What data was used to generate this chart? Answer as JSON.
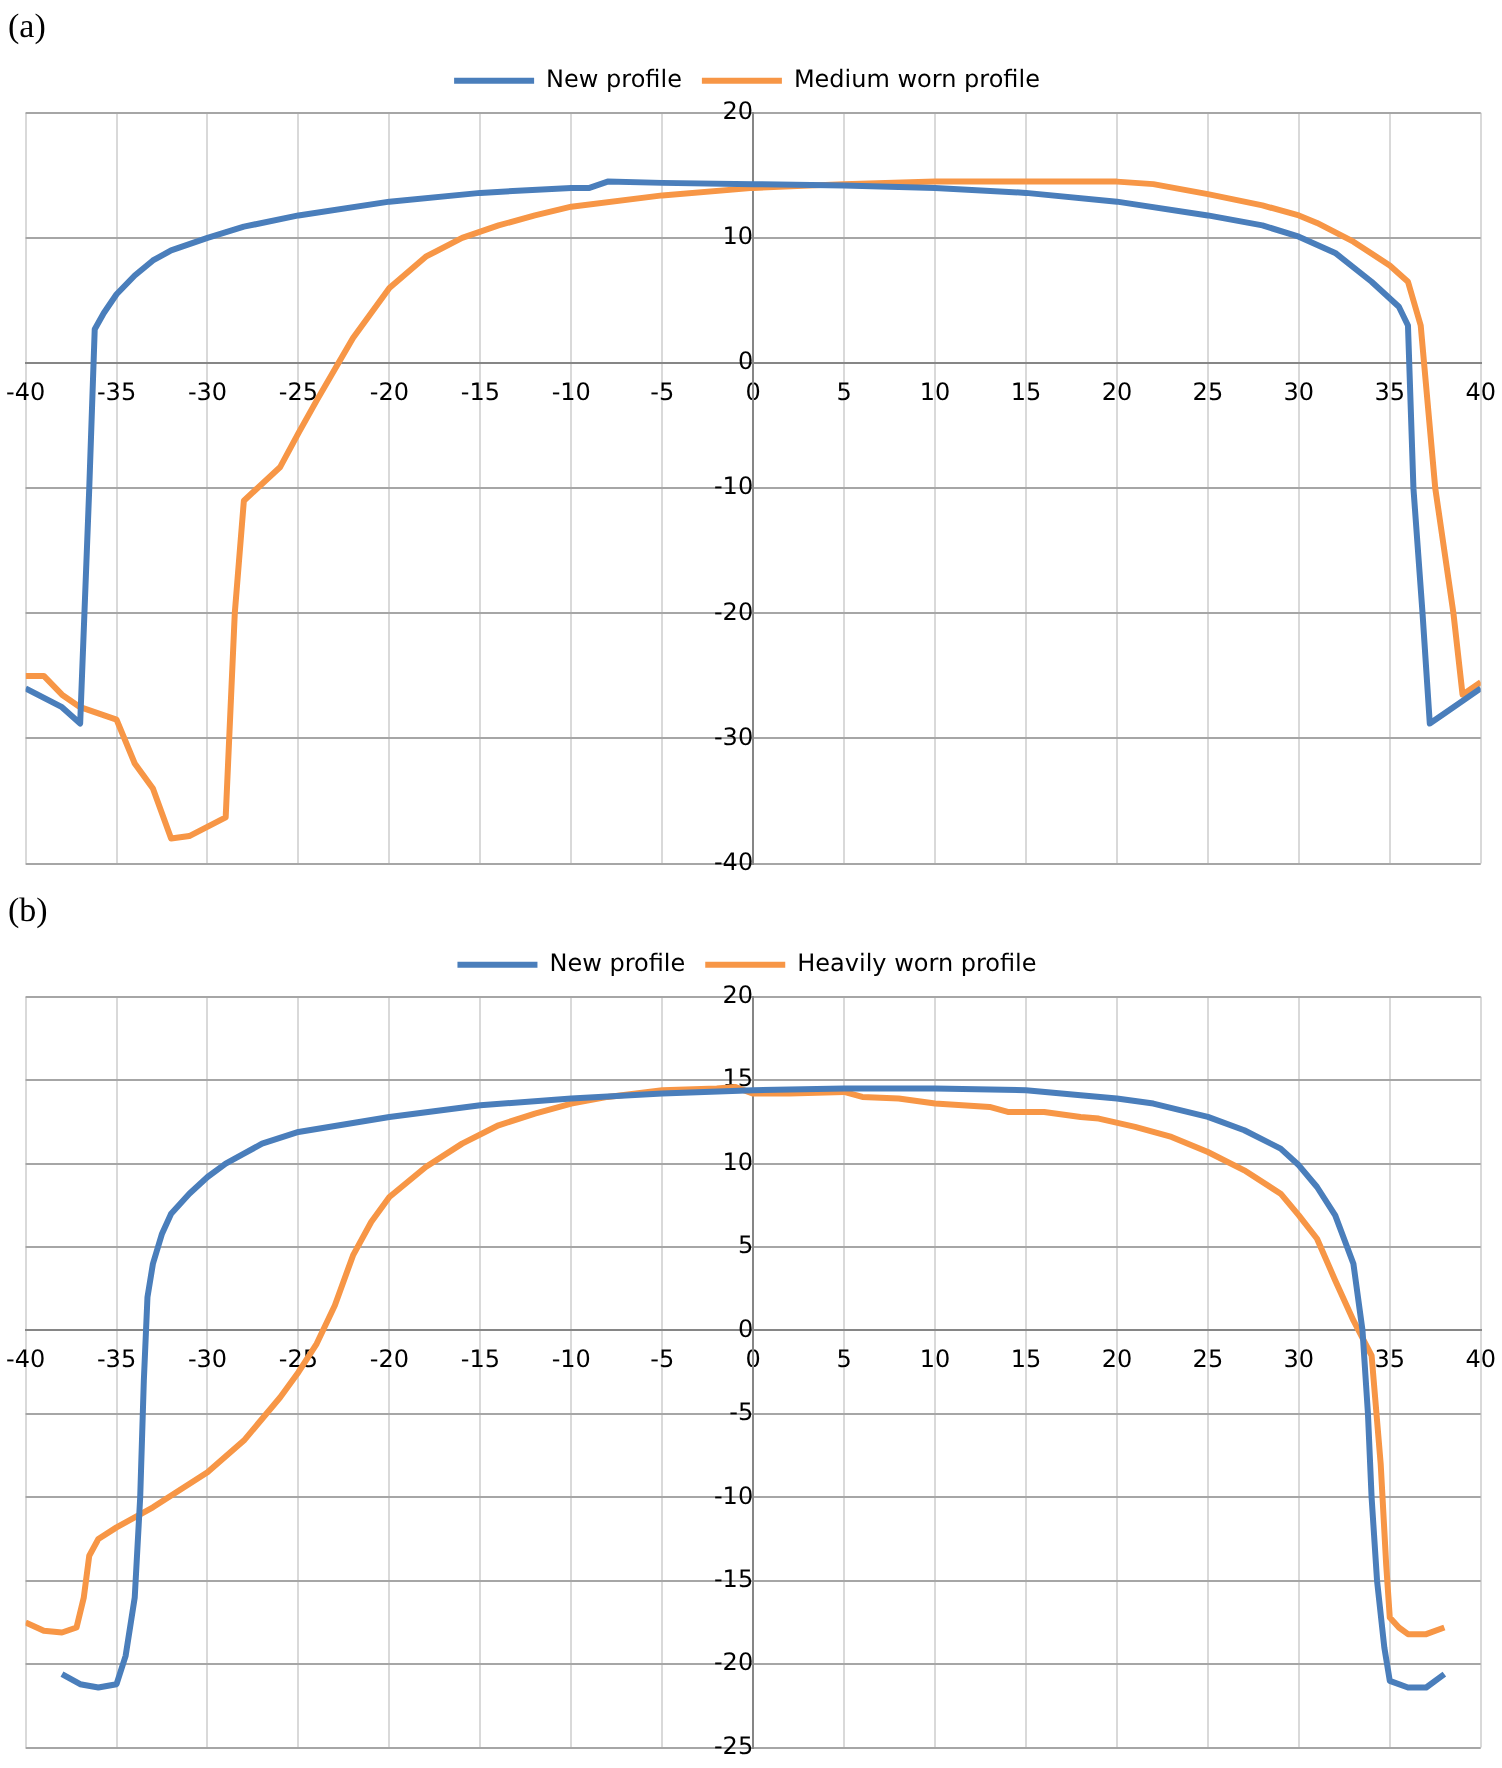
{
  "chart_data": [
    {
      "type": "line",
      "title": "(a)",
      "legend": "top",
      "grid": true,
      "marker": "none",
      "xlim": [
        -40,
        40
      ],
      "xticks": [
        -40,
        -35,
        -30,
        -25,
        -20,
        -15,
        -10,
        -5,
        0,
        5,
        10,
        15,
        20,
        25,
        30,
        35,
        40
      ],
      "ylim": [
        -40,
        20
      ],
      "yticks": [
        -40,
        -30,
        -20,
        -10,
        0,
        10,
        20
      ],
      "series": [
        {
          "name": "New profile",
          "color": "#4a7ebb",
          "x": [
            -40,
            -38,
            -37,
            -36.5,
            -36.2,
            -35.7,
            -35,
            -34,
            -33,
            -32,
            -30,
            -28,
            -25,
            -20,
            -15,
            -10,
            -9,
            -8,
            -5,
            0,
            5,
            10,
            15,
            20,
            25,
            28,
            30,
            32,
            34,
            35.5,
            36,
            36.3,
            36.8,
            37.2,
            38,
            40
          ],
          "values": [
            -26,
            -27.5,
            -28.8,
            -10,
            2.7,
            4,
            5.5,
            7,
            8.2,
            9,
            10,
            10.9,
            11.8,
            12.9,
            13.6,
            14,
            14,
            14.5,
            14.4,
            14.3,
            14.2,
            14,
            13.6,
            12.9,
            11.8,
            11,
            10.1,
            8.8,
            6.5,
            4.5,
            3,
            -10,
            -20,
            -28.8,
            -28,
            -26
          ]
        },
        {
          "name": "Medium worn profile",
          "color": "#f79646",
          "x": [
            -40,
            -39,
            -38,
            -37,
            -35,
            -34,
            -33,
            -32,
            -31,
            -29,
            -28.5,
            -28,
            -26,
            -25,
            -24,
            -23,
            -22,
            -21,
            -20,
            -18,
            -16,
            -14,
            -12,
            -10,
            -5,
            0,
            5,
            10,
            15,
            20,
            22,
            25,
            28,
            30,
            31,
            33,
            35,
            36,
            36.7,
            37.5,
            38.5,
            39,
            40
          ],
          "values": [
            -25,
            -25,
            -26.5,
            -27.5,
            -28.5,
            -32,
            -34,
            -38,
            -37.8,
            -36.3,
            -20,
            -11,
            -8.3,
            -5.6,
            -3,
            -0.5,
            2,
            4,
            6,
            8.5,
            10,
            11,
            11.8,
            12.5,
            13.4,
            14,
            14.3,
            14.5,
            14.5,
            14.5,
            14.3,
            13.5,
            12.6,
            11.8,
            11.2,
            9.7,
            7.8,
            6.5,
            3,
            -10,
            -20,
            -26.5,
            -25.5
          ]
        }
      ]
    },
    {
      "type": "line",
      "title": "(b)",
      "legend": "top",
      "grid": true,
      "marker": "none",
      "xlim": [
        -40,
        40
      ],
      "xticks": [
        -40,
        -35,
        -30,
        -25,
        -20,
        -15,
        -10,
        -5,
        0,
        5,
        10,
        15,
        20,
        25,
        30,
        35,
        40
      ],
      "ylim": [
        -25,
        20
      ],
      "yticks": [
        -25,
        -20,
        -15,
        -10,
        -5,
        0,
        5,
        10,
        15,
        20
      ],
      "series": [
        {
          "name": "New profile",
          "color": "#4a7ebb",
          "x": [
            -38,
            -37,
            -36,
            -35,
            -34.5,
            -34,
            -33.7,
            -33.5,
            -33.3,
            -33,
            -32.5,
            -32,
            -31,
            -30,
            -29,
            -28,
            -27,
            -25,
            -20,
            -15,
            -10,
            -5,
            0,
            5,
            10,
            15,
            18,
            20,
            22,
            25,
            27,
            29,
            30,
            31,
            32,
            33,
            33.5,
            33.8,
            34,
            34.3,
            34.7,
            35,
            36,
            37,
            38
          ],
          "values": [
            -20.6,
            -21.2,
            -21.4,
            -21.2,
            -19.5,
            -16,
            -10,
            -3,
            2,
            4,
            5.8,
            7,
            8.2,
            9.2,
            10,
            10.6,
            11.2,
            11.9,
            12.8,
            13.5,
            13.9,
            14.2,
            14.4,
            14.5,
            14.5,
            14.4,
            14.1,
            13.9,
            13.6,
            12.8,
            12,
            10.9,
            9.9,
            8.6,
            6.9,
            4,
            0,
            -5,
            -10,
            -15,
            -19,
            -21,
            -21.4,
            -21.4,
            -20.6
          ]
        },
        {
          "name": "Heavily worn profile",
          "color": "#f79646",
          "x": [
            -40,
            -39,
            -38,
            -37.2,
            -36.8,
            -36.5,
            -36,
            -35,
            -33,
            -30,
            -28,
            -26,
            -25,
            -24,
            -23,
            -22,
            -21,
            -20,
            -18,
            -16,
            -14,
            -12,
            -10,
            -8,
            -5,
            -2,
            -1,
            0,
            2,
            5,
            6,
            8,
            10,
            13,
            14,
            16,
            18,
            19,
            21,
            23,
            25,
            27,
            29,
            30,
            31,
            32,
            33,
            34,
            34.5,
            34.8,
            35,
            35.5,
            36,
            37,
            38
          ],
          "values": [
            -17.5,
            -18,
            -18.1,
            -17.8,
            -16,
            -13.5,
            -12.5,
            -11.8,
            -10.6,
            -8.5,
            -6.6,
            -4,
            -2.5,
            -0.8,
            1.5,
            4.5,
            6.5,
            8,
            9.8,
            11.2,
            12.3,
            13,
            13.6,
            14,
            14.4,
            14.5,
            14.6,
            14.2,
            14.2,
            14.3,
            14,
            13.9,
            13.6,
            13.4,
            13.1,
            13.1,
            12.8,
            12.7,
            12.2,
            11.6,
            10.7,
            9.6,
            8.2,
            6.9,
            5.5,
            3,
            0.6,
            -1.5,
            -8,
            -14,
            -17.2,
            -17.8,
            -18.2,
            -18.2,
            -17.8
          ]
        }
      ]
    }
  ]
}
